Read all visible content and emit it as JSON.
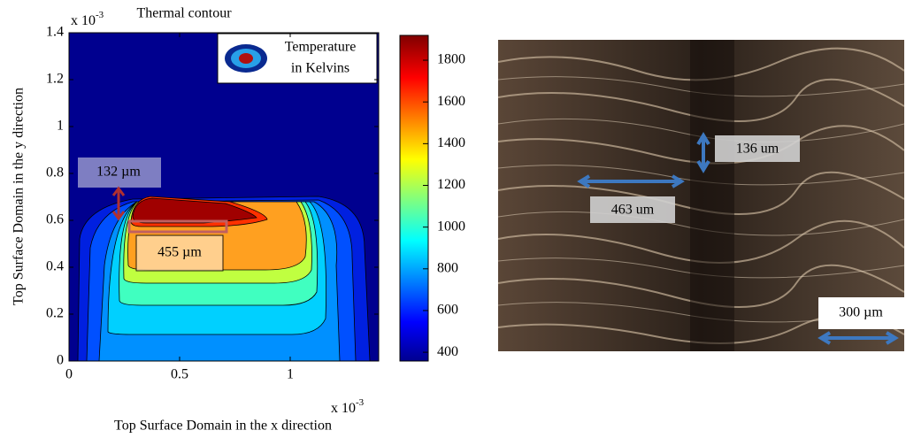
{
  "chart_data": {
    "type": "contour",
    "title": "Thermal contour",
    "x_label": "Top Surface Domain  in the x direction",
    "y_label": "Top Surface Domain in the y direction",
    "x_multiplier": {
      "base": "x 10",
      "exponent": "-3"
    },
    "y_multiplier": {
      "base": "x 10",
      "exponent": "-3"
    },
    "xlim": [
      0,
      1.4
    ],
    "xticks": [
      0,
      0.5,
      1
    ],
    "ylim": [
      0,
      1.4
    ],
    "yticks": [
      0,
      0.2,
      0.4,
      0.6,
      0.8,
      1,
      1.2,
      1.4
    ],
    "colorbar": {
      "lim": [
        358,
        1919
      ],
      "ticks": [
        400,
        600,
        800,
        1000,
        1200,
        1400,
        1600,
        1800
      ]
    },
    "legend": [
      "Temperature",
      "in Kelvins"
    ],
    "annotations": [
      "132 µm",
      "455 µm"
    ]
  },
  "micrograph": {
    "annotations": [
      "136 um",
      "463 um",
      "300 µm"
    ]
  }
}
